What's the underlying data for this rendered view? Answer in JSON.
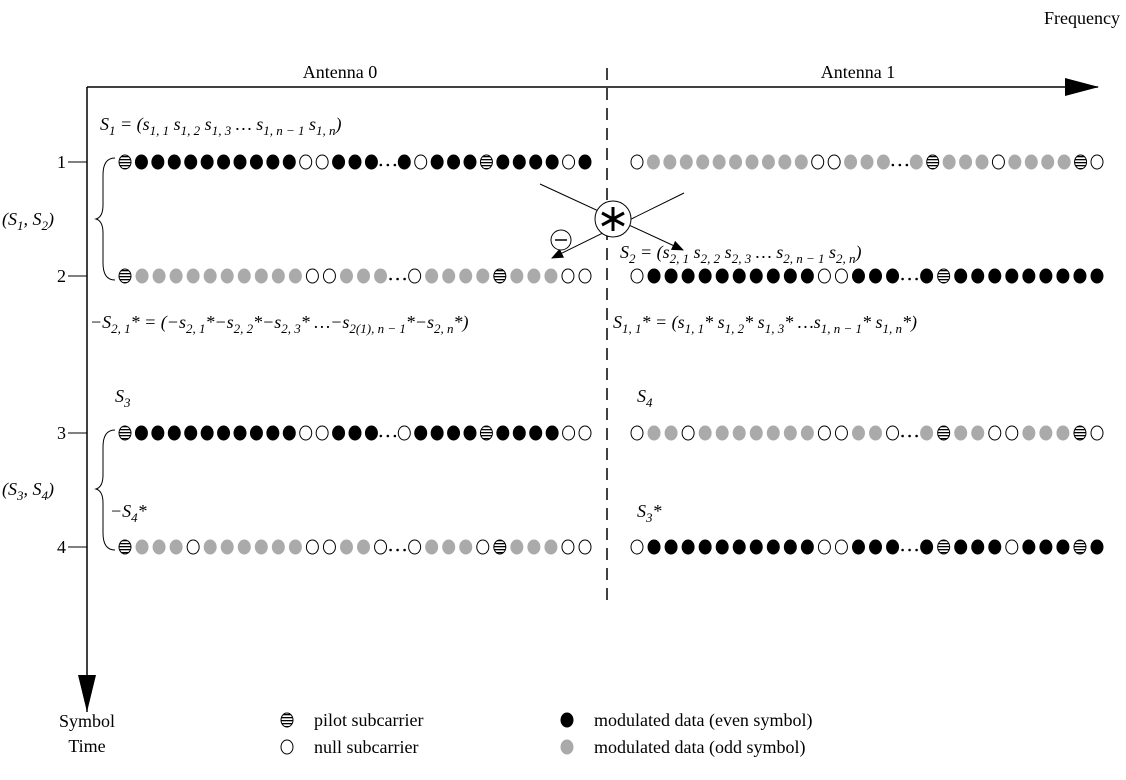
{
  "header": {
    "frequency": "Frequency",
    "symbol_time": [
      "Symbol",
      "Time"
    ]
  },
  "antennas": [
    "Antenna 0",
    "Antenna 1"
  ],
  "rows": [
    "1",
    "2",
    "3",
    "4"
  ],
  "groups": [
    [
      [
        "(S",
        "1"
      ],
      [
        ", S",
        "2"
      ],
      [
        ")"
      ]
    ],
    [
      [
        "(S",
        "3"
      ],
      [
        ", S",
        "4"
      ],
      [
        ")"
      ]
    ]
  ],
  "formulas": [
    [
      [
        "S",
        "1"
      ],
      [
        " = (s",
        "1, 1"
      ],
      [
        "  s",
        "1, 2"
      ],
      [
        "  s",
        "1, 3"
      ],
      [
        "  …  s",
        "1, n − 1"
      ],
      [
        "  s",
        "1, n"
      ],
      [
        ")"
      ]
    ],
    [
      [
        "S",
        "2"
      ],
      [
        " = (s",
        "2, 1"
      ],
      [
        "  s",
        "2, 2"
      ],
      [
        "  s",
        "2, 3"
      ],
      [
        "  …  s",
        "2, n − 1"
      ],
      [
        "  s",
        "2, n"
      ],
      [
        ")"
      ]
    ],
    [
      [
        "−S",
        "2, 1"
      ],
      [
        "* = (−s",
        "2, 1"
      ],
      [
        "*−s",
        "2, 2"
      ],
      [
        "*−s",
        "2, 3"
      ],
      [
        "* …−s",
        "2(1), n − 1"
      ],
      [
        "*−s",
        "2, n"
      ],
      [
        "*)"
      ]
    ],
    [
      [
        "S",
        "1, 1"
      ],
      [
        "* = (s",
        "1, 1"
      ],
      [
        "* s",
        "1, 2"
      ],
      [
        "* s",
        "1, 3"
      ],
      [
        "* …s",
        "1, n − 1"
      ],
      [
        "* s",
        "1, n"
      ],
      [
        "*)"
      ]
    ],
    [
      [
        "S",
        "3"
      ]
    ],
    [
      [
        "S",
        "4"
      ]
    ],
    [
      [
        "−S",
        "4"
      ],
      [
        "*"
      ]
    ],
    [
      [
        "S",
        "3"
      ],
      [
        "*"
      ]
    ]
  ],
  "legend": [
    "pilot subcarrier",
    "null subcarrier",
    "modulated data (even symbol)",
    "modulated data (odd symbol)"
  ]
}
